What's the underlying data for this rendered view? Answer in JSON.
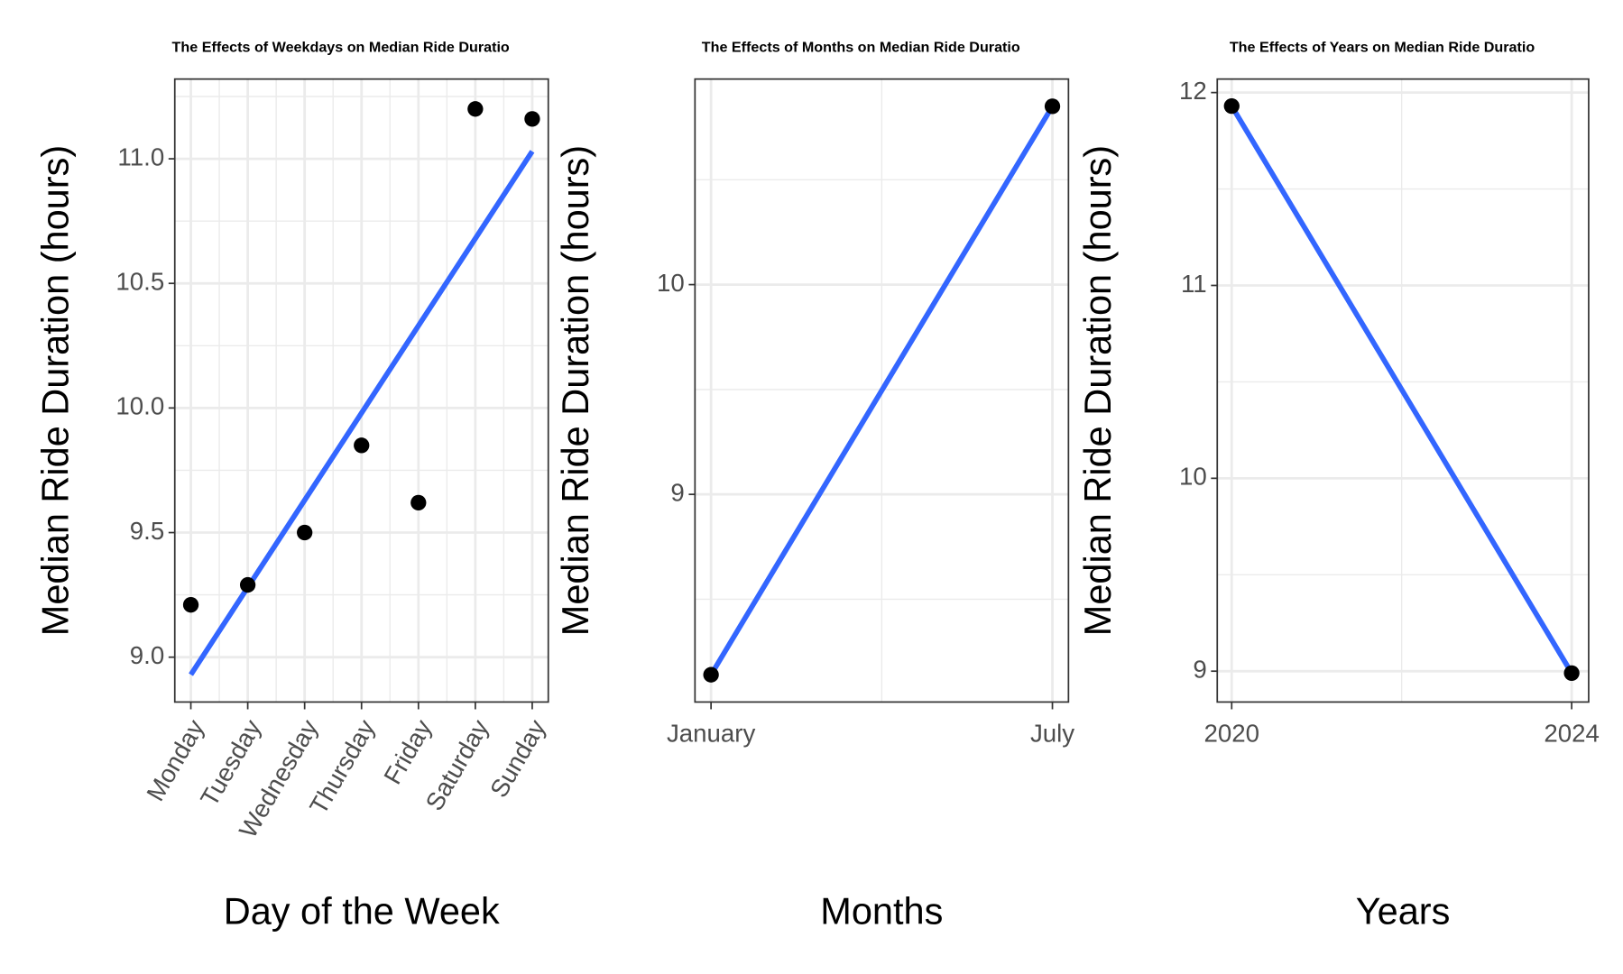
{
  "chart_data": [
    {
      "type": "scatter",
      "title": "The Effects of Weekdays on Median Ride Duratio",
      "x_label": "Day of the Week",
      "y_label": "Median Ride Duration (hours)",
      "categories": [
        "Monday",
        "Tuesday",
        "Wednesday",
        "Thursday",
        "Friday",
        "Saturday",
        "Sunday"
      ],
      "values": [
        9.21,
        9.29,
        9.5,
        9.85,
        9.62,
        11.2,
        11.16
      ],
      "color": "#000000",
      "trend": {
        "color": "#3366ff",
        "values": [
          8.93,
          9.28,
          9.63,
          9.98,
          10.33,
          10.68,
          11.03
        ]
      },
      "ylim": [
        8.82,
        11.32
      ],
      "yticks": [
        {
          "value": 9,
          "label": "9.0"
        },
        9.5,
        {
          "value": 10,
          "label": "10.0"
        },
        10.5,
        {
          "value": 11,
          "label": "11.0"
        }
      ],
      "grid": true,
      "x_label_rotation": 60
    },
    {
      "type": "scatter",
      "title": "The Effects of Months on Median Ride Duratio",
      "x_label": "Months",
      "y_label": "Median Ride Duration (hours)",
      "categories": [
        "January",
        "July"
      ],
      "values": [
        8.14,
        10.85
      ],
      "color": "#000000",
      "trend": {
        "color": "#3366ff",
        "values": [
          8.14,
          10.85
        ]
      },
      "ylim": [
        8.01,
        10.98
      ],
      "yticks": [
        9,
        10
      ],
      "grid": true
    },
    {
      "type": "scatter",
      "title": "The Effects of Years on Median Ride Duratio",
      "x_label": "Years",
      "y_label": "Median Ride Duration (hours)",
      "x": [
        2020,
        2024
      ],
      "values": [
        11.93,
        8.99
      ],
      "color": "#000000",
      "trend": {
        "color": "#3366ff",
        "values": [
          11.93,
          8.99
        ]
      },
      "xlim": [
        2019.83,
        2024.2
      ],
      "xticks": [
        2020,
        2024
      ],
      "ylim": [
        8.84,
        12.07
      ],
      "yticks": [
        9,
        10,
        11,
        12
      ],
      "grid": true
    }
  ]
}
